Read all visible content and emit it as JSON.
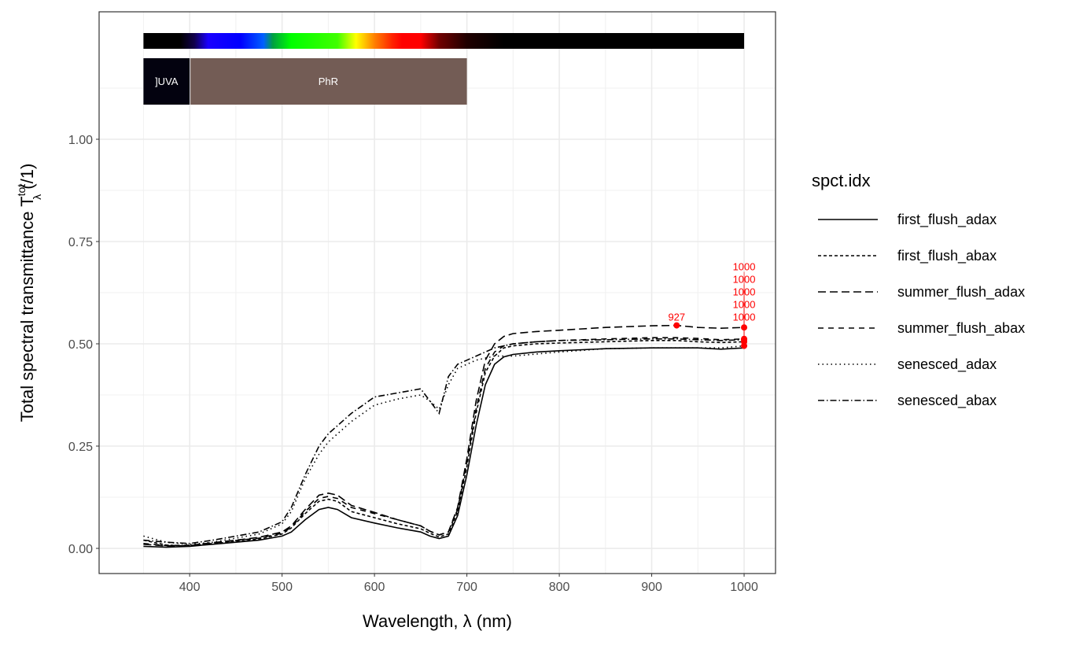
{
  "chart_data": {
    "type": "line",
    "xlabel": "Wavelength, λ (nm)",
    "ylabel": {
      "main": "Total  spectral  transmittance  T",
      "sup": "tot",
      "sub": "λ",
      "unit": "(/1)"
    },
    "xlim": [
      302,
      1034
    ],
    "ylim": [
      -0.0615,
      1.3115
    ],
    "xticks": [
      400,
      500,
      600,
      700,
      800,
      900,
      1000
    ],
    "xtick_labels": [
      "400",
      "500",
      "600",
      "700",
      "800",
      "900",
      "1000"
    ],
    "yticks": [
      0,
      0.25,
      0.5,
      0.75,
      1
    ],
    "ytick_labels": [
      "0.00",
      "0.25",
      "0.50",
      "0.75",
      "1.00"
    ],
    "grid": true,
    "legend": {
      "title": "spct.idx",
      "placement": "right"
    },
    "wavebands": [
      {
        "label": "]UVA",
        "from": 350,
        "to": 400,
        "color": "#03020f"
      },
      {
        "label": "PhR",
        "from": 400,
        "to": 700,
        "color": "#735c55"
      }
    ],
    "x": [
      350,
      375,
      400,
      425,
      450,
      475,
      500,
      510,
      525,
      540,
      550,
      560,
      575,
      600,
      625,
      650,
      660,
      670,
      680,
      690,
      700,
      710,
      720,
      730,
      740,
      750,
      775,
      800,
      850,
      900,
      927,
      950,
      975,
      1000
    ],
    "series": [
      {
        "name": "first_flush_adax",
        "dash": "",
        "values": [
          0.005,
          0.003,
          0.005,
          0.01,
          0.015,
          0.02,
          0.03,
          0.04,
          0.07,
          0.095,
          0.1,
          0.095,
          0.075,
          0.062,
          0.05,
          0.04,
          0.03,
          0.024,
          0.03,
          0.08,
          0.18,
          0.3,
          0.4,
          0.45,
          0.468,
          0.474,
          0.48,
          0.483,
          0.488,
          0.49,
          0.49,
          0.49,
          0.487,
          0.49
        ]
      },
      {
        "name": "first_flush_abax",
        "dash": "4 3",
        "values": [
          0.02,
          0.008,
          0.006,
          0.012,
          0.017,
          0.023,
          0.035,
          0.05,
          0.085,
          0.115,
          0.12,
          0.115,
          0.09,
          0.075,
          0.06,
          0.048,
          0.037,
          0.028,
          0.035,
          0.09,
          0.2,
          0.33,
          0.43,
          0.47,
          0.49,
          0.495,
          0.5,
          0.502,
          0.505,
          0.508,
          0.508,
          0.505,
          0.503,
          0.505
        ]
      },
      {
        "name": "summer_flush_adax",
        "dash": "10 5",
        "values": [
          0.01,
          0.006,
          0.007,
          0.014,
          0.02,
          0.027,
          0.04,
          0.055,
          0.095,
          0.13,
          0.135,
          0.13,
          0.105,
          0.088,
          0.07,
          0.055,
          0.042,
          0.033,
          0.04,
          0.1,
          0.22,
          0.36,
          0.46,
          0.5,
          0.518,
          0.525,
          0.53,
          0.533,
          0.54,
          0.544,
          0.545,
          0.54,
          0.538,
          0.54
        ]
      },
      {
        "name": "summer_flush_abax",
        "dash": "7 6",
        "values": [
          0.012,
          0.007,
          0.008,
          0.013,
          0.019,
          0.025,
          0.037,
          0.052,
          0.09,
          0.122,
          0.127,
          0.122,
          0.1,
          0.085,
          0.07,
          0.055,
          0.042,
          0.033,
          0.04,
          0.095,
          0.21,
          0.34,
          0.44,
          0.48,
          0.495,
          0.5,
          0.505,
          0.508,
          0.512,
          0.515,
          0.515,
          0.513,
          0.51,
          0.512
        ]
      },
      {
        "name": "senesced_adax",
        "dash": "1.5 4",
        "values": [
          0.03,
          0.015,
          0.01,
          0.015,
          0.025,
          0.035,
          0.06,
          0.09,
          0.17,
          0.23,
          0.26,
          0.28,
          0.31,
          0.35,
          0.365,
          0.375,
          0.36,
          0.34,
          0.4,
          0.44,
          0.45,
          0.46,
          0.465,
          0.47,
          0.47,
          0.47,
          0.475,
          0.48,
          0.488,
          0.49,
          0.49,
          0.49,
          0.49,
          0.495
        ]
      },
      {
        "name": "senesced_abax",
        "dash": "8 3 1.5 3",
        "values": [
          0.02,
          0.015,
          0.012,
          0.02,
          0.03,
          0.04,
          0.065,
          0.1,
          0.18,
          0.25,
          0.28,
          0.3,
          0.33,
          0.37,
          0.38,
          0.39,
          0.36,
          0.33,
          0.42,
          0.45,
          0.46,
          0.47,
          0.48,
          0.49,
          0.495,
          0.5,
          0.505,
          0.508,
          0.51,
          0.512,
          0.512,
          0.51,
          0.508,
          0.51
        ]
      }
    ],
    "peaks": [
      {
        "x": 927,
        "y": 0.545,
        "label": "927"
      },
      {
        "x": 1000,
        "y": 0.54,
        "label": "1000"
      },
      {
        "x": 1000,
        "y": 0.512,
        "label": "1000"
      },
      {
        "x": 1000,
        "y": 0.51,
        "label": "1000"
      },
      {
        "x": 1000,
        "y": 0.505,
        "label": "1000"
      },
      {
        "x": 1000,
        "y": 0.495,
        "label": "1000"
      }
    ],
    "peak_color": "#ff0000"
  }
}
